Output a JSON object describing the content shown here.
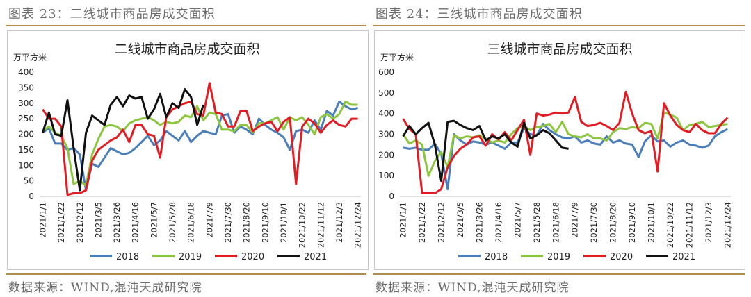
{
  "panels": [
    {
      "caption": "图表 23：二线城市商品房成交面积",
      "source": "数据来源：WIND,混沌天成研究院",
      "chart_data": {
        "type": "line",
        "title": "二线城市商品房成交面积",
        "unit": "万平方米",
        "ylim": [
          0,
          400
        ],
        "yticks": [
          0,
          50,
          100,
          150,
          200,
          250,
          300,
          350,
          400
        ],
        "n_points": 52,
        "xtick_labels": [
          "2021/1/1",
          "2021/1/22",
          "2021/2/12",
          "2021/3/5",
          "2021/3/26",
          "2021/4/16",
          "2021/5/7",
          "2021/5/28",
          "2021/6/18",
          "2021/7/9",
          "2021/7/30",
          "2021/8/20",
          "2021/9/10",
          "2021/10/1",
          "2021/10/22",
          "2021/11/12",
          "2021/12/3",
          "2021/12/24"
        ],
        "legend_position": "bottom",
        "series": [
          {
            "name": "2018",
            "color": "#4a7ebb",
            "values": [
              205,
              220,
              170,
              170,
              150,
              155,
              135,
              20,
              105,
              95,
              125,
              155,
              145,
              135,
              140,
              155,
              175,
              195,
              165,
              180,
              210,
              195,
              180,
              210,
              175,
              195,
              210,
              205,
              200,
              260,
              265,
              205,
              225,
              215,
              200,
              250,
              230,
              215,
              205,
              190,
              150,
              210,
              215,
              205,
              245,
              215,
              275,
              260,
              305,
              290,
              280,
              285
            ]
          },
          {
            "name": "2019",
            "color": "#8cc63f",
            "values": [
              210,
              225,
              205,
              195,
              155,
              40,
              50,
              35,
              135,
              185,
              225,
              230,
              225,
              210,
              235,
              245,
              250,
              255,
              245,
              230,
              240,
              235,
              240,
              260,
              255,
              290,
              245,
              270,
              265,
              215,
              215,
              210,
              230,
              230,
              205,
              235,
              235,
              245,
              255,
              215,
              255,
              245,
              255,
              230,
              200,
              255,
              265,
              250,
              265,
              305,
              295,
              295
            ]
          },
          {
            "name": "2020",
            "color": "#e11c23",
            "values": [
              280,
              250,
              250,
              225,
              5,
              10,
              10,
              20,
              115,
              150,
              165,
              180,
              190,
              215,
              175,
              230,
              230,
              200,
              195,
              125,
              255,
              280,
              290,
              300,
              305,
              265,
              260,
              365,
              270,
              265,
              225,
              225,
              275,
              275,
              210,
              225,
              235,
              240,
              210,
              240,
              255,
              40,
              225,
              250,
              235,
              205,
              230,
              245,
              230,
              225,
              250,
              250
            ]
          },
          {
            "name": "2021",
            "color": "#111111",
            "values": [
              205,
              270,
              200,
              195,
              310,
              155,
              20,
              205,
              260,
              245,
              230,
              295,
              320,
              290,
              325,
              315,
              320,
              250,
              280,
              330,
              255,
              300,
              285,
              345,
              320,
              230,
              295
            ]
          }
        ]
      }
    },
    {
      "caption": "图表 24：三线城市商品房成交面积",
      "source": "数据来源：WIND,混沌天成研究院",
      "chart_data": {
        "type": "line",
        "title": "三线城市商品房成交面积",
        "unit": "万平方米",
        "ylim": [
          0,
          600
        ],
        "yticks": [
          0,
          100,
          200,
          300,
          400,
          500,
          600
        ],
        "n_points": 52,
        "xtick_labels": [
          "2021/1/1",
          "2021/1/22",
          "2021/2/12",
          "2021/3/5",
          "2021/3/26",
          "2021/4/16",
          "2021/5/7",
          "2021/5/28",
          "2021/6/18",
          "2021/7/9",
          "2021/7/30",
          "2021/8/20",
          "2021/9/10",
          "2021/10/1",
          "2021/10/22",
          "2021/11/12",
          "2021/12/3",
          "2021/12/24"
        ],
        "legend_position": "bottom",
        "series": [
          {
            "name": "2018",
            "color": "#4a7ebb",
            "values": [
              235,
              230,
              235,
              225,
              225,
              255,
              205,
              35,
              300,
              270,
              250,
              265,
              260,
              250,
              260,
              245,
              230,
              260,
              260,
              330,
              300,
              295,
              350,
              320,
              300,
              285,
              280,
              290,
              260,
              270,
              255,
              250,
              290,
              260,
              270,
              255,
              250,
              190,
              265,
              295,
              265,
              270,
              240,
              260,
              270,
              250,
              245,
              235,
              245,
              290,
              310,
              325
            ]
          },
          {
            "name": "2019",
            "color": "#8cc63f",
            "values": [
              300,
              255,
              270,
              250,
              100,
              170,
              215,
              140,
              295,
              280,
              290,
              285,
              295,
              280,
              260,
              270,
              260,
              300,
              330,
              340,
              320,
              335,
              340,
              350,
              310,
              360,
              300,
              290,
              285,
              300,
              280,
              280,
              270,
              310,
              330,
              325,
              335,
              330,
              355,
              350,
              280,
              405,
              395,
              380,
              320,
              345,
              350,
              360,
              335,
              340,
              345,
              350
            ]
          },
          {
            "name": "2020",
            "color": "#e11c23",
            "values": [
              375,
              325,
              300,
              15,
              15,
              15,
              35,
              140,
              195,
              230,
              250,
              285,
              290,
              245,
              300,
              275,
              310,
              270,
              320,
              370,
              200,
              400,
              390,
              395,
              405,
              400,
              405,
              480,
              360,
              340,
              345,
              355,
              340,
              320,
              355,
              505,
              400,
              320,
              305,
              315,
              120,
              450,
              390,
              345,
              320,
              310,
              350,
              320,
              305,
              305,
              350,
              380
            ]
          },
          {
            "name": "2021",
            "color": "#111111",
            "values": [
              290,
              340,
              300,
              330,
              355,
              250,
              75,
              360,
              365,
              345,
              330,
              320,
              340,
              270,
              290,
              280,
              300,
              260,
              240,
              355,
              280,
              295,
              320,
              305,
              270,
              235,
              230
            ]
          }
        ]
      }
    }
  ]
}
